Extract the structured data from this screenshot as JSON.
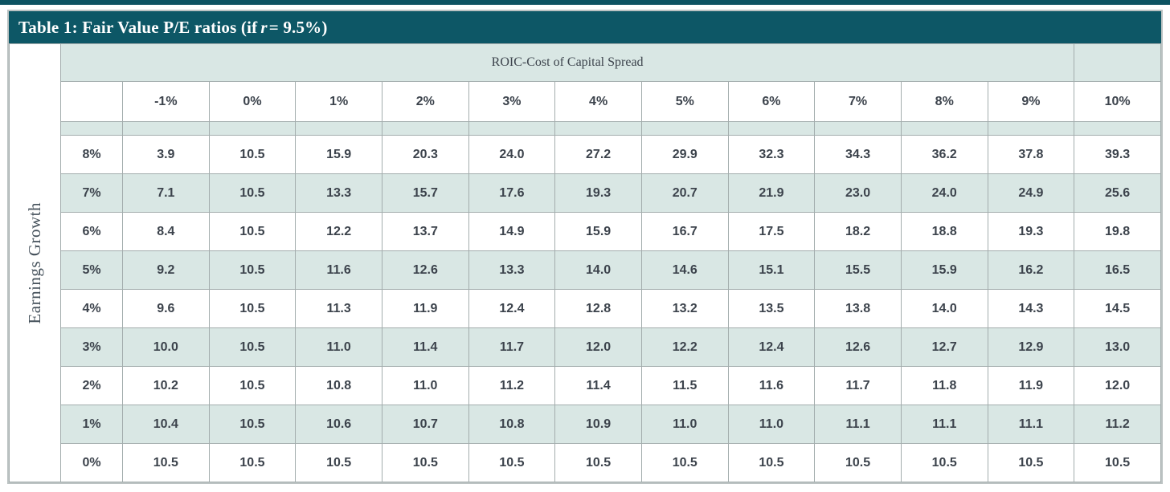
{
  "colors": {
    "title_bar_bg": "#0d5766",
    "title_text": "#ffffff",
    "band_teal": "#d9e7e4",
    "cell_text": "#3c434c",
    "grid_border": "#a3adad",
    "outer_border": "#bcc3c3",
    "top_rule": "#0d5362"
  },
  "title": {
    "prefix": "Table 1: Fair Value P/E ratios (if",
    "var": "r",
    "suffix": "= 9.5%)"
  },
  "chart_data": {
    "type": "table",
    "title": "Table 1: Fair Value P/E ratios (if r = 9.5%)",
    "column_group_label": "ROIC-Cost of Capital Spread",
    "row_group_label": "Earnings Growth",
    "column_headers": [
      "-1%",
      "0%",
      "1%",
      "2%",
      "3%",
      "4%",
      "5%",
      "6%",
      "7%",
      "8%",
      "9%",
      "10%"
    ],
    "value_format_decimals": 1,
    "rows": [
      {
        "label": "8%",
        "values": [
          3.9,
          10.5,
          15.9,
          20.3,
          24.0,
          27.2,
          29.9,
          32.3,
          34.3,
          36.2,
          37.8,
          39.3
        ]
      },
      {
        "label": "7%",
        "values": [
          7.1,
          10.5,
          13.3,
          15.7,
          17.6,
          19.3,
          20.7,
          21.9,
          23.0,
          24.0,
          24.9,
          25.6
        ]
      },
      {
        "label": "6%",
        "values": [
          8.4,
          10.5,
          12.2,
          13.7,
          14.9,
          15.9,
          16.7,
          17.5,
          18.2,
          18.8,
          19.3,
          19.8
        ]
      },
      {
        "label": "5%",
        "values": [
          9.2,
          10.5,
          11.6,
          12.6,
          13.3,
          14.0,
          14.6,
          15.1,
          15.5,
          15.9,
          16.2,
          16.5
        ]
      },
      {
        "label": "4%",
        "values": [
          9.6,
          10.5,
          11.3,
          11.9,
          12.4,
          12.8,
          13.2,
          13.5,
          13.8,
          14.0,
          14.3,
          14.5
        ]
      },
      {
        "label": "3%",
        "values": [
          10.0,
          10.5,
          11.0,
          11.4,
          11.7,
          12.0,
          12.2,
          12.4,
          12.6,
          12.7,
          12.9,
          13.0
        ]
      },
      {
        "label": "2%",
        "values": [
          10.2,
          10.5,
          10.8,
          11.0,
          11.2,
          11.4,
          11.5,
          11.6,
          11.7,
          11.8,
          11.9,
          12.0
        ]
      },
      {
        "label": "1%",
        "values": [
          10.4,
          10.5,
          10.6,
          10.7,
          10.8,
          10.9,
          11.0,
          11.0,
          11.1,
          11.1,
          11.1,
          11.2
        ]
      },
      {
        "label": "0%",
        "values": [
          10.5,
          10.5,
          10.5,
          10.5,
          10.5,
          10.5,
          10.5,
          10.5,
          10.5,
          10.5,
          10.5,
          10.5
        ]
      }
    ]
  }
}
